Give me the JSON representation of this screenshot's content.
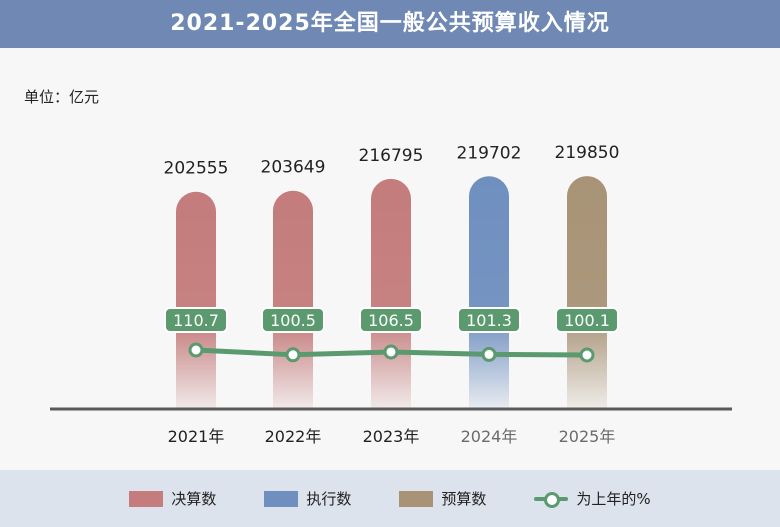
{
  "title": "2021-2025年全国一般公共预算收入情况",
  "unit_label": "单位：亿元",
  "chart_data": {
    "type": "bar",
    "title": "2021-2025年全国一般公共预算收入情况",
    "ylabel": "单位：亿元",
    "categories": [
      "2021年",
      "2022年",
      "2023年",
      "2024年",
      "2025年"
    ],
    "series": [
      {
        "name": "决算数",
        "values": [
          202555,
          203649,
          216795,
          null,
          null
        ],
        "color": "#c47c7c"
      },
      {
        "name": "执行数",
        "values": [
          null,
          null,
          null,
          219702,
          null
        ],
        "color": "#6f8fbf"
      },
      {
        "name": "预算数",
        "values": [
          null,
          null,
          null,
          null,
          219850
        ],
        "color": "#a89376"
      }
    ],
    "line_series": {
      "name": "为上年的%",
      "values": [
        110.7,
        100.5,
        106.5,
        101.3,
        100.1
      ],
      "color": "#5a9a6e"
    },
    "value_labels": [
      "202555",
      "203649",
      "216795",
      "219702",
      "219850"
    ],
    "pct_labels": [
      "110.7",
      "100.5",
      "106.5",
      "101.3",
      "100.1"
    ],
    "legend_position": "bottom",
    "grid": false
  },
  "legend": [
    {
      "label": "决算数",
      "color": "#c47c7c",
      "kind": "bar"
    },
    {
      "label": "执行数",
      "color": "#6f8fbf",
      "kind": "bar"
    },
    {
      "label": "预算数",
      "color": "#a89376",
      "kind": "bar"
    },
    {
      "label": "为上年的%",
      "color": "#5a9a6e",
      "kind": "line"
    }
  ]
}
